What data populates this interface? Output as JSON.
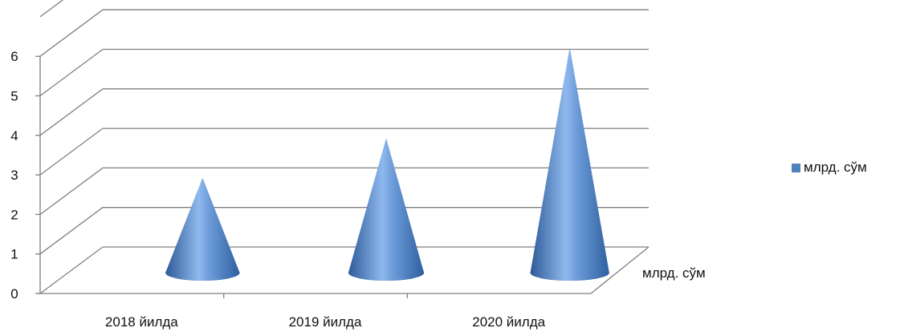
{
  "chart_data": {
    "type": "bar",
    "style": "3d-cone",
    "categories": [
      "2018 йилда",
      "2019 йилда",
      "2020 йилда"
    ],
    "series": [
      {
        "name": "млрд. сўм",
        "values": [
          2.4,
          3.4,
          5.7
        ],
        "color": "#4F81BD"
      }
    ],
    "depth_axis_label": "млрд. сўм",
    "yticks": [
      0,
      1,
      2,
      3,
      4,
      5,
      6
    ],
    "ylim": [
      0,
      6
    ],
    "grid": true,
    "legend": "right"
  }
}
